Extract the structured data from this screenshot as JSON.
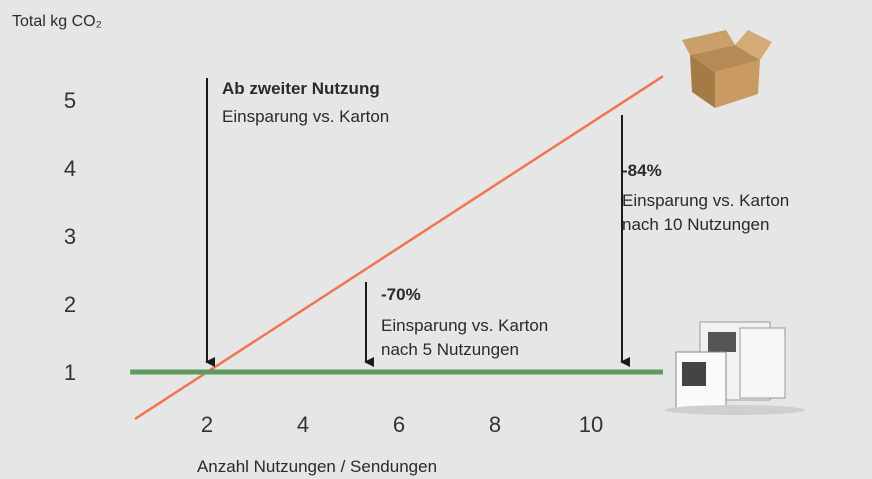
{
  "chart_data": {
    "type": "line",
    "y_label": "Total kg CO₂",
    "x_label": "Anzahl Nutzungen / Sendungen",
    "xlim": [
      0,
      12
    ],
    "ylim": [
      0.2,
      5.5
    ],
    "xticks": [
      2,
      4,
      6,
      8,
      10
    ],
    "yticks": [
      1,
      2,
      3,
      4,
      5
    ],
    "grid": false,
    "series": [
      {
        "color": "#f07552",
        "x": [
          0.5,
          11.5
        ],
        "values": [
          0.31,
          5.35
        ]
      },
      {
        "color": "#5c9a5e",
        "x": [
          0.4,
          11.5
        ],
        "values": [
          1,
          1
        ]
      }
    ],
    "annotations": [
      {
        "title": "Ab zweiter Nutzung",
        "lines": [
          "Einsparung vs. Karton"
        ]
      },
      {
        "title": "-70%",
        "lines": [
          "Einsparung vs. Karton",
          "nach 5 Nutzungen"
        ]
      },
      {
        "title": "-84%",
        "lines": [
          "Einsparung vs. Karton",
          "nach 10 Nutzungen"
        ]
      }
    ]
  }
}
